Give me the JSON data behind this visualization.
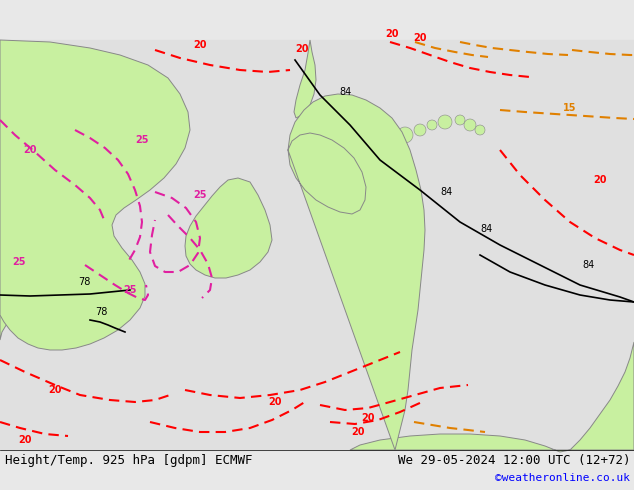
{
  "title_left": "Height/Temp. 925 hPa [gdpm] ECMWF",
  "title_right": "We 29-05-2024 12:00 UTC (12+72)",
  "credit": "©weatheronline.co.uk",
  "bg_color": "#e8e8e8",
  "land_green_color": "#c8f0a0",
  "land_gray_color": "#d0d0d0",
  "border_color": "#a0a0a0",
  "title_fontsize": 9,
  "credit_fontsize": 8,
  "fig_width": 6.34,
  "fig_height": 4.9,
  "dpi": 100
}
